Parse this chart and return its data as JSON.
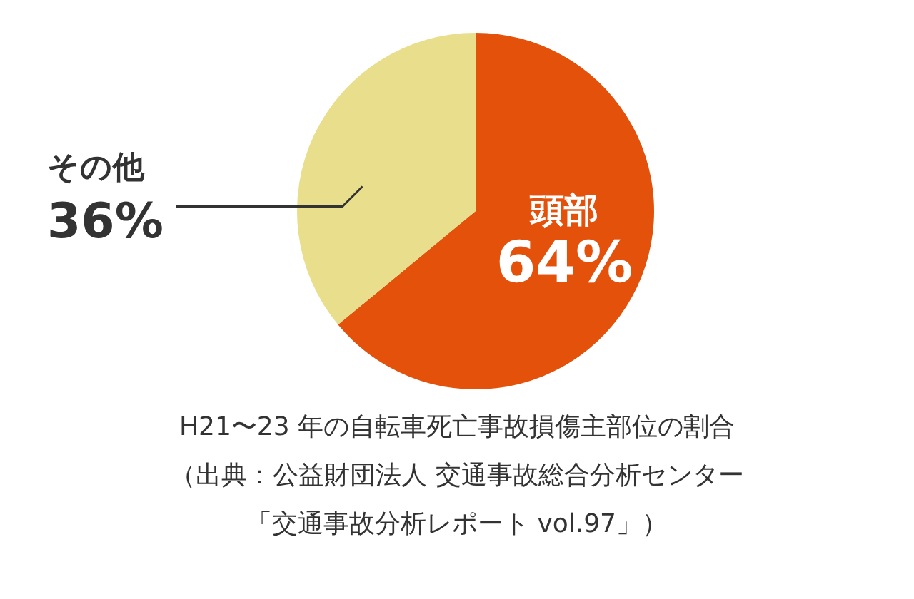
{
  "chart_data": {
    "type": "pie",
    "title": "H21〜23 年の自転車死亡事故損傷主部位の割合",
    "categories": [
      "頭部",
      "その他"
    ],
    "values": [
      64,
      36
    ],
    "value_labels": [
      "64%",
      "36%"
    ],
    "colors": [
      "#e4510b",
      "#e8de8c"
    ],
    "annotations": [
      "（出典：公益財団法人 交通事故総合分析センター",
      "「交通事故分析レポート vol.97」）"
    ],
    "legend": false
  }
}
